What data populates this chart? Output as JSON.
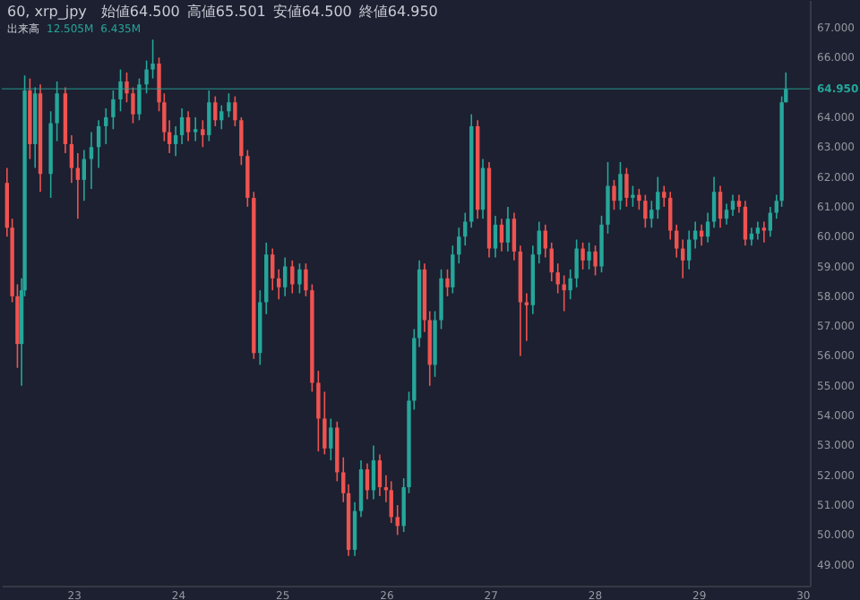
{
  "chart_data": {
    "type": "candlestick",
    "title": "60, xrp_jpy",
    "annotations": [
      "始値64.500",
      "高値65.501",
      "安値64.500",
      "終値64.950",
      "出来高",
      "12.505M",
      "6.435M"
    ],
    "x": [
      22.36,
      22.41,
      22.46,
      22.5,
      22.53,
      22.58,
      22.63,
      22.68,
      22.78,
      22.84,
      22.92,
      22.98,
      23.04,
      23.1,
      23.17,
      23.24,
      23.31,
      23.38,
      23.45,
      23.51,
      23.57,
      23.63,
      23.7,
      23.76,
      23.82,
      23.87,
      23.92,
      23.98,
      24.04,
      24.1,
      24.17,
      24.24,
      24.3,
      24.36,
      24.42,
      24.49,
      24.55,
      24.61,
      24.67,
      24.73,
      24.79,
      24.85,
      24.91,
      24.97,
      25.03,
      25.1,
      25.17,
      25.23,
      25.29,
      25.35,
      25.41,
      25.47,
      25.53,
      25.59,
      25.64,
      25.7,
      25.76,
      25.82,
      25.88,
      25.94,
      26.0,
      26.05,
      26.11,
      26.17,
      26.22,
      26.27,
      26.32,
      26.37,
      26.42,
      26.47,
      26.53,
      26.59,
      26.64,
      26.7,
      26.76,
      26.82,
      26.88,
      26.93,
      26.99,
      27.05,
      27.11,
      27.17,
      27.23,
      27.29,
      27.35,
      27.41,
      27.47,
      27.53,
      27.59,
      27.65,
      27.71,
      27.77,
      27.83,
      27.89,
      27.95,
      28.01,
      28.07,
      28.13,
      28.19,
      28.25,
      28.31,
      28.37,
      28.43,
      28.49,
      28.55,
      28.61,
      28.67,
      28.73,
      28.79,
      28.85,
      28.91,
      28.97,
      29.03,
      29.09,
      29.15,
      29.21,
      29.27,
      29.33,
      29.39,
      29.45,
      29.51,
      29.57,
      29.63,
      29.69,
      29.75,
      29.8,
      29.84
    ],
    "ohlc": [
      [
        61.8,
        62.3,
        60.0,
        60.3
      ],
      [
        60.3,
        60.6,
        57.8,
        58.0
      ],
      [
        58.0,
        58.4,
        55.6,
        56.4
      ],
      [
        56.4,
        58.6,
        55.0,
        58.2
      ],
      [
        58.2,
        65.4,
        58.0,
        64.9
      ],
      [
        64.9,
        65.3,
        62.6,
        63.1
      ],
      [
        63.1,
        65.0,
        62.3,
        64.8
      ],
      [
        64.8,
        65.1,
        61.5,
        62.1
      ],
      [
        62.1,
        64.2,
        61.3,
        63.8
      ],
      [
        63.8,
        65.2,
        63.2,
        64.8
      ],
      [
        64.8,
        65.0,
        62.8,
        63.1
      ],
      [
        63.1,
        63.4,
        61.8,
        62.3
      ],
      [
        62.3,
        62.8,
        60.6,
        61.9
      ],
      [
        61.9,
        62.9,
        61.2,
        62.6
      ],
      [
        62.6,
        63.5,
        61.6,
        63.0
      ],
      [
        63.0,
        63.9,
        62.3,
        63.7
      ],
      [
        63.7,
        64.3,
        63.1,
        64.0
      ],
      [
        64.0,
        64.9,
        63.6,
        64.6
      ],
      [
        64.6,
        65.6,
        64.2,
        65.2
      ],
      [
        65.2,
        65.5,
        64.5,
        64.8
      ],
      [
        64.8,
        65.0,
        63.8,
        64.1
      ],
      [
        64.1,
        65.3,
        63.9,
        65.1
      ],
      [
        65.1,
        65.9,
        64.8,
        65.6
      ],
      [
        65.6,
        66.6,
        65.3,
        65.8
      ],
      [
        65.8,
        66.0,
        64.2,
        64.5
      ],
      [
        64.5,
        64.8,
        63.2,
        63.5
      ],
      [
        63.5,
        63.9,
        62.8,
        63.1
      ],
      [
        63.1,
        63.7,
        62.7,
        63.4
      ],
      [
        63.4,
        64.3,
        63.1,
        64.0
      ],
      [
        64.0,
        64.2,
        63.2,
        63.5
      ],
      [
        63.5,
        64.0,
        63.2,
        63.6
      ],
      [
        63.6,
        63.9,
        63.0,
        63.4
      ],
      [
        63.4,
        64.9,
        63.2,
        64.5
      ],
      [
        64.5,
        64.7,
        63.7,
        63.9
      ],
      [
        63.9,
        64.4,
        63.6,
        64.2
      ],
      [
        64.2,
        64.8,
        64.0,
        64.5
      ],
      [
        64.5,
        64.7,
        63.7,
        63.9
      ],
      [
        63.9,
        64.0,
        62.4,
        62.7
      ],
      [
        62.7,
        62.9,
        61.0,
        61.3
      ],
      [
        61.3,
        61.5,
        55.9,
        56.1
      ],
      [
        56.1,
        58.2,
        55.7,
        57.8
      ],
      [
        57.8,
        59.8,
        57.4,
        59.4
      ],
      [
        59.4,
        59.6,
        58.2,
        58.6
      ],
      [
        58.6,
        58.9,
        57.9,
        58.3
      ],
      [
        58.3,
        59.3,
        58.0,
        59.0
      ],
      [
        59.0,
        59.2,
        58.1,
        58.4
      ],
      [
        58.4,
        59.1,
        58.1,
        58.9
      ],
      [
        58.9,
        59.1,
        58.0,
        58.2
      ],
      [
        58.2,
        58.4,
        54.8,
        55.1
      ],
      [
        55.1,
        55.5,
        52.8,
        53.9
      ],
      [
        53.9,
        54.8,
        52.7,
        52.9
      ],
      [
        52.9,
        53.9,
        52.5,
        53.6
      ],
      [
        53.6,
        53.8,
        51.8,
        52.1
      ],
      [
        52.1,
        52.6,
        51.1,
        51.4
      ],
      [
        51.4,
        51.7,
        49.3,
        49.5
      ],
      [
        49.5,
        51.1,
        49.3,
        50.8
      ],
      [
        50.8,
        52.5,
        50.6,
        52.2
      ],
      [
        52.2,
        52.4,
        51.2,
        51.5
      ],
      [
        51.5,
        53.0,
        51.2,
        52.5
      ],
      [
        52.5,
        52.7,
        51.3,
        51.6
      ],
      [
        51.6,
        52.0,
        51.1,
        51.5
      ],
      [
        51.5,
        51.8,
        50.4,
        50.6
      ],
      [
        50.6,
        51.0,
        50.0,
        50.3
      ],
      [
        50.3,
        51.9,
        50.1,
        51.6
      ],
      [
        51.6,
        54.8,
        51.4,
        54.5
      ],
      [
        54.5,
        56.9,
        54.2,
        56.6
      ],
      [
        56.6,
        59.2,
        56.3,
        58.9
      ],
      [
        58.9,
        59.1,
        56.8,
        57.2
      ],
      [
        57.2,
        57.5,
        55.0,
        55.7
      ],
      [
        55.7,
        57.5,
        55.3,
        57.2
      ],
      [
        57.2,
        58.9,
        56.9,
        58.6
      ],
      [
        58.6,
        58.9,
        58.0,
        58.3
      ],
      [
        58.3,
        59.7,
        58.1,
        59.4
      ],
      [
        59.4,
        60.3,
        59.1,
        60.0
      ],
      [
        60.0,
        60.8,
        59.7,
        60.5
      ],
      [
        60.5,
        64.1,
        60.3,
        63.7
      ],
      [
        63.7,
        63.9,
        60.6,
        60.9
      ],
      [
        60.9,
        62.6,
        60.6,
        62.3
      ],
      [
        62.3,
        62.5,
        59.3,
        59.6
      ],
      [
        59.6,
        60.7,
        59.3,
        60.4
      ],
      [
        60.4,
        60.6,
        59.5,
        59.8
      ],
      [
        59.8,
        61.0,
        59.5,
        60.6
      ],
      [
        60.6,
        60.8,
        59.2,
        59.5
      ],
      [
        59.5,
        59.7,
        56.0,
        57.8
      ],
      [
        57.8,
        58.1,
        56.5,
        57.7
      ],
      [
        57.7,
        59.7,
        57.4,
        59.4
      ],
      [
        59.4,
        60.5,
        59.1,
        60.2
      ],
      [
        60.2,
        60.4,
        59.3,
        59.6
      ],
      [
        59.6,
        59.8,
        58.5,
        58.8
      ],
      [
        58.8,
        59.1,
        58.1,
        58.4
      ],
      [
        58.4,
        58.7,
        57.5,
        58.2
      ],
      [
        58.2,
        58.9,
        57.9,
        58.6
      ],
      [
        58.6,
        59.9,
        58.3,
        59.6
      ],
      [
        59.6,
        59.8,
        58.9,
        59.2
      ],
      [
        59.2,
        59.8,
        58.9,
        59.5
      ],
      [
        59.5,
        59.7,
        58.7,
        59.0
      ],
      [
        59.0,
        60.7,
        58.8,
        60.4
      ],
      [
        60.4,
        62.5,
        60.1,
        61.7
      ],
      [
        61.7,
        61.9,
        60.9,
        61.2
      ],
      [
        61.2,
        62.5,
        60.9,
        62.1
      ],
      [
        62.1,
        62.3,
        61.0,
        61.3
      ],
      [
        61.3,
        61.7,
        61.0,
        61.4
      ],
      [
        61.4,
        61.6,
        60.9,
        61.2
      ],
      [
        61.2,
        61.4,
        60.3,
        60.6
      ],
      [
        60.6,
        61.2,
        60.3,
        60.9
      ],
      [
        60.9,
        62.0,
        60.6,
        61.5
      ],
      [
        61.5,
        61.7,
        61.0,
        61.3
      ],
      [
        61.3,
        61.5,
        59.9,
        60.2
      ],
      [
        60.2,
        60.4,
        59.3,
        59.6
      ],
      [
        59.6,
        59.9,
        58.6,
        59.2
      ],
      [
        59.2,
        60.2,
        58.9,
        59.9
      ],
      [
        59.9,
        60.5,
        59.6,
        60.2
      ],
      [
        60.2,
        60.4,
        59.7,
        60.0
      ],
      [
        60.0,
        60.8,
        59.8,
        60.5
      ],
      [
        60.5,
        62.0,
        60.3,
        61.5
      ],
      [
        61.5,
        61.7,
        60.3,
        60.6
      ],
      [
        60.6,
        61.1,
        60.4,
        60.9
      ],
      [
        60.9,
        61.4,
        60.7,
        61.2
      ],
      [
        61.2,
        61.4,
        60.8,
        61.0
      ],
      [
        61.0,
        61.2,
        59.7,
        59.9
      ],
      [
        59.9,
        60.3,
        59.7,
        60.1
      ],
      [
        60.1,
        60.5,
        59.9,
        60.3
      ],
      [
        60.3,
        60.5,
        59.8,
        60.2
      ],
      [
        60.2,
        61.0,
        60.0,
        60.8
      ],
      [
        60.8,
        61.4,
        60.6,
        61.2
      ],
      [
        61.2,
        64.7,
        61.0,
        64.5
      ],
      [
        64.5,
        65.501,
        64.5,
        64.95
      ]
    ],
    "colors": [
      "#ef5350",
      "#ef5350",
      "#ef5350",
      "#26a69a",
      "#26a69a",
      "#ef5350",
      "#26a69a",
      "#ef5350",
      "#26a69a",
      "#26a69a",
      "#ef5350",
      "#ef5350",
      "#ef5350",
      "#26a69a",
      "#26a69a",
      "#26a69a",
      "#26a69a",
      "#26a69a",
      "#26a69a",
      "#ef5350",
      "#ef5350",
      "#26a69a",
      "#26a69a",
      "#26a69a",
      "#ef5350",
      "#ef5350",
      "#ef5350",
      "#26a69a",
      "#26a69a",
      "#ef5350",
      "#26a69a",
      "#ef5350",
      "#26a69a",
      "#ef5350",
      "#26a69a",
      "#26a69a",
      "#ef5350",
      "#ef5350",
      "#ef5350",
      "#ef5350",
      "#26a69a",
      "#26a69a",
      "#ef5350",
      "#ef5350",
      "#26a69a",
      "#ef5350",
      "#26a69a",
      "#ef5350",
      "#ef5350",
      "#ef5350",
      "#ef5350",
      "#26a69a",
      "#ef5350",
      "#ef5350",
      "#ef5350",
      "#26a69a",
      "#26a69a",
      "#ef5350",
      "#26a69a",
      "#ef5350",
      "#ef5350",
      "#ef5350",
      "#ef5350",
      "#26a69a",
      "#26a69a",
      "#26a69a",
      "#26a69a",
      "#ef5350",
      "#ef5350",
      "#26a69a",
      "#26a69a",
      "#ef5350",
      "#26a69a",
      "#26a69a",
      "#26a69a",
      "#26a69a",
      "#ef5350",
      "#26a69a",
      "#ef5350",
      "#26a69a",
      "#ef5350",
      "#26a69a",
      "#ef5350",
      "#ef5350",
      "#ef5350",
      "#26a69a",
      "#26a69a",
      "#ef5350",
      "#ef5350",
      "#ef5350",
      "#ef5350",
      "#26a69a",
      "#26a69a",
      "#ef5350",
      "#26a69a",
      "#ef5350",
      "#26a69a",
      "#26a69a",
      "#ef5350",
      "#26a69a",
      "#ef5350",
      "#26a69a",
      "#ef5350",
      "#ef5350",
      "#26a69a",
      "#26a69a",
      "#ef5350",
      "#ef5350",
      "#ef5350",
      "#ef5350",
      "#26a69a",
      "#26a69a",
      "#ef5350",
      "#26a69a",
      "#26a69a",
      "#ef5350",
      "#26a69a",
      "#26a69a",
      "#ef5350",
      "#ef5350",
      "#26a69a",
      "#26a69a",
      "#ef5350",
      "#26a69a",
      "#26a69a",
      "#26a69a",
      "#26a69a"
    ],
    "xlim": [
      22.31,
      30.07
    ],
    "xticks": [
      23,
      24,
      25,
      26,
      27,
      28,
      29,
      30
    ],
    "ylim": [
      48.3,
      67.93
    ],
    "yticks": [
      {
        "value": 49,
        "label": "49.000"
      },
      {
        "value": 50,
        "label": "50.000"
      },
      {
        "value": 51,
        "label": "51.000"
      },
      {
        "value": 52,
        "label": "52.000"
      },
      {
        "value": 53,
        "label": "53.000"
      },
      {
        "value": 54,
        "label": "54.000"
      },
      {
        "value": 55,
        "label": "55.000"
      },
      {
        "value": 56,
        "label": "56.000"
      },
      {
        "value": 57,
        "label": "57.000"
      },
      {
        "value": 58,
        "label": "58.000"
      },
      {
        "value": 59,
        "label": "59.000"
      },
      {
        "value": 60,
        "label": "60.000"
      },
      {
        "value": 61,
        "label": "61.000"
      },
      {
        "value": 62,
        "label": "62.000"
      },
      {
        "value": 63,
        "label": "63.000"
      },
      {
        "value": 64,
        "label": "64.000"
      },
      {
        "value": 66,
        "label": "66.000"
      },
      {
        "value": 67,
        "label": "67.000"
      }
    ],
    "ref_lines": [
      {
        "axis": "y",
        "value": 64.95,
        "label": "64.950",
        "color": "#26a69a"
      }
    ]
  }
}
